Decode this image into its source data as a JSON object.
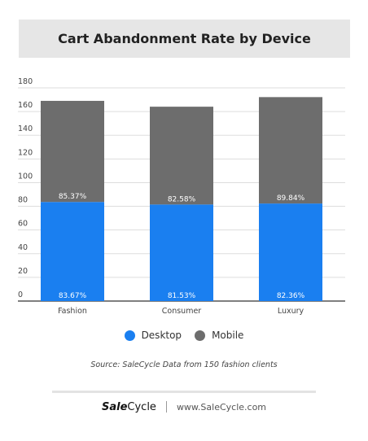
{
  "header": {
    "title": "Cart Abandonment Rate by Device"
  },
  "chart_data": {
    "type": "bar",
    "stacked": true,
    "categories": [
      "Fashion",
      "Consumer",
      "Luxury"
    ],
    "series": [
      {
        "name": "Desktop",
        "values": [
          83.67,
          81.53,
          82.36
        ],
        "labels": [
          "83.67%",
          "81.53%",
          "82.36%"
        ],
        "color": "#1a7ff0"
      },
      {
        "name": "Mobile",
        "values": [
          85.37,
          82.58,
          89.84
        ],
        "labels": [
          "85.37%",
          "82.58%",
          "89.84%"
        ],
        "color": "#6d6d6d"
      }
    ],
    "ylim": [
      0,
      180
    ],
    "yticks": [
      0,
      20,
      40,
      60,
      80,
      100,
      120,
      140,
      160,
      180
    ],
    "grid": true,
    "legend_position": "bottom"
  },
  "legend": {
    "items": [
      {
        "label": "Desktop",
        "color": "#1a7ff0"
      },
      {
        "label": "Mobile",
        "color": "#6d6d6d"
      }
    ]
  },
  "source": "Source: SaleCycle Data from 150 fashion clients",
  "footer": {
    "brand_bold": "Sale",
    "brand_rest": "Cycle",
    "url": "www.SaleCycle.com"
  }
}
